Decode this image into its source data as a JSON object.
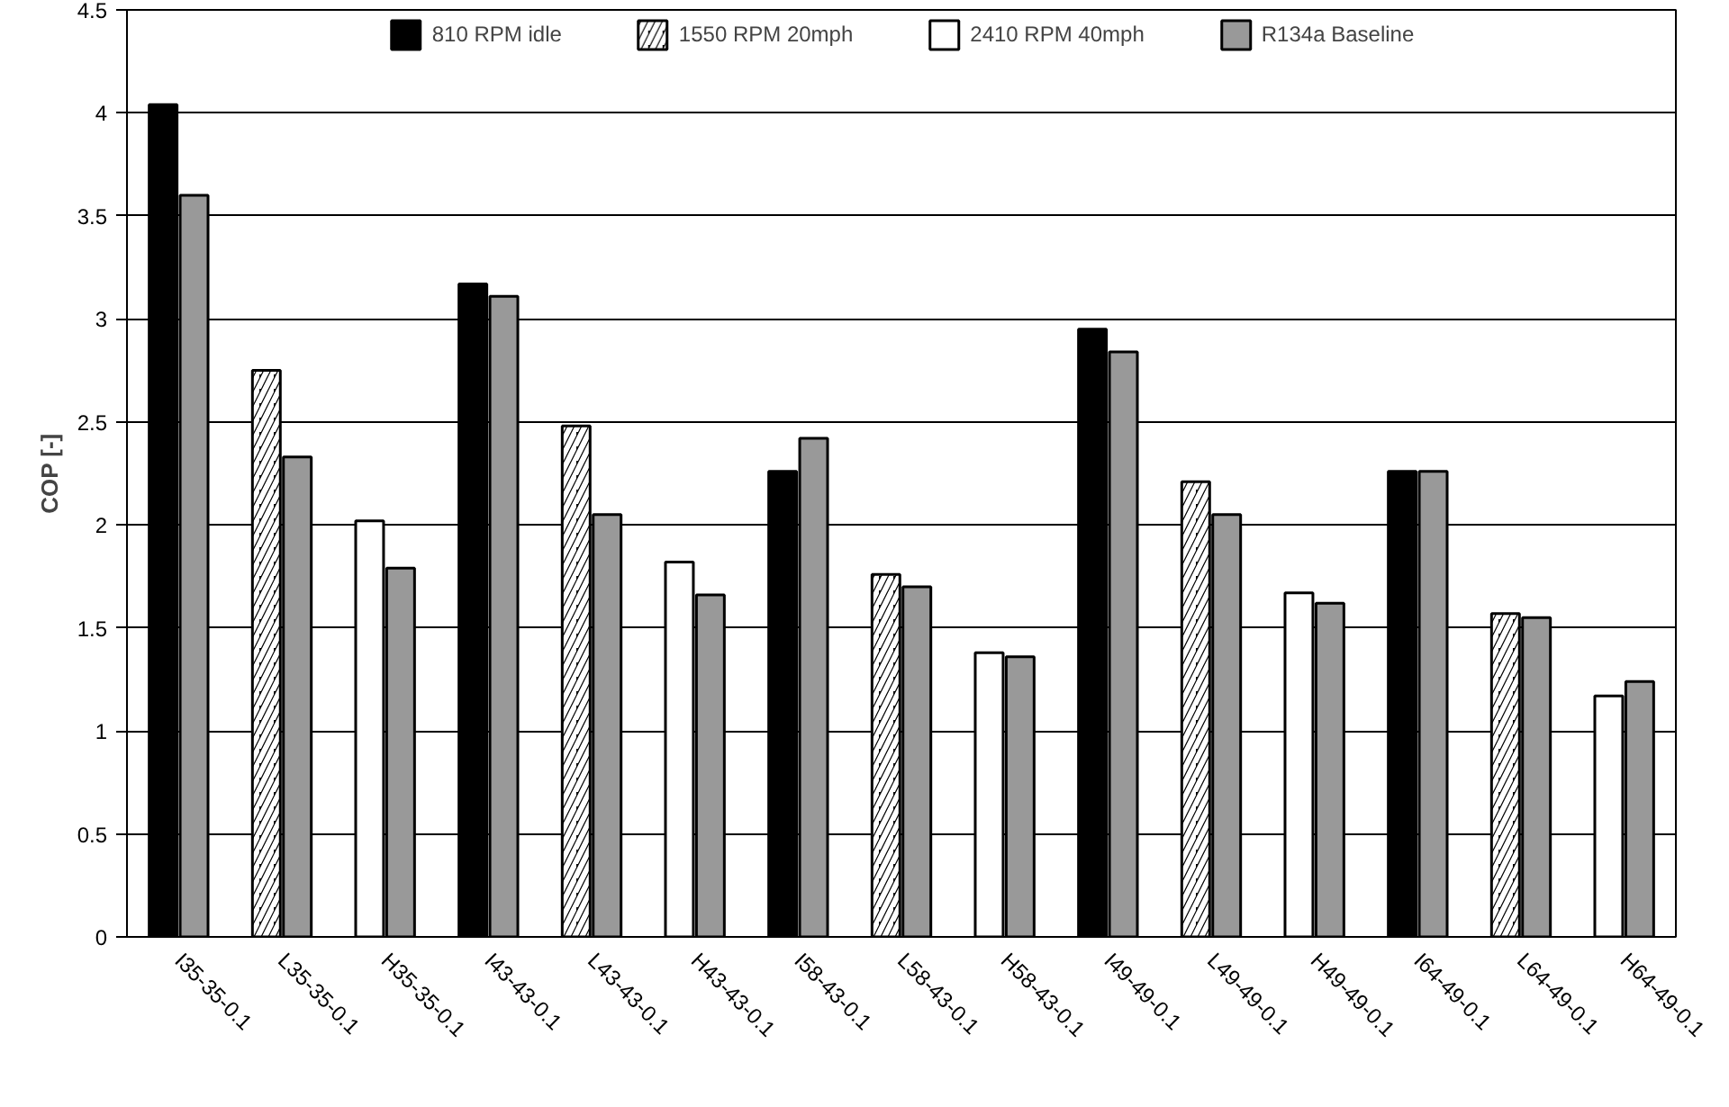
{
  "chart_data": {
    "type": "bar",
    "ylabel": "COP [-]",
    "categories": [
      "I35-35-0.1",
      "L35-35-0.1",
      "H35-35-0.1",
      "I43-43-0.1",
      "L43-43-0.1",
      "H43-43-0.1",
      "I58-43-0.1",
      "L58-43-0.1",
      "H58-43-0.1",
      "I49-49-0.1",
      "L49-49-0.1",
      "H49-49-0.1",
      "I64-49-0.1",
      "L64-49-0.1",
      "H64-49-0.1"
    ],
    "series": [
      {
        "name": "810 RPM idle",
        "color": "#000000",
        "values": [
          4.04,
          null,
          null,
          3.17,
          null,
          null,
          2.26,
          null,
          null,
          2.95,
          null,
          null,
          2.26,
          null,
          null
        ]
      },
      {
        "name": "1550 RPM 20mph",
        "color": "#000000",
        "values": [
          null,
          2.75,
          null,
          null,
          2.48,
          null,
          null,
          1.76,
          null,
          null,
          2.21,
          null,
          null,
          1.57,
          null
        ]
      },
      {
        "name": "2410 RPM 40mph",
        "color": "#ffffff",
        "values": [
          null,
          null,
          2.02,
          null,
          null,
          1.82,
          null,
          null,
          1.38,
          null,
          null,
          1.67,
          null,
          null,
          1.17
        ]
      },
      {
        "name": "R134a Baseline",
        "color": "#999999",
        "values": [
          3.6,
          2.33,
          1.79,
          3.11,
          2.05,
          1.66,
          2.42,
          1.7,
          1.36,
          2.84,
          2.05,
          1.62,
          2.26,
          1.55,
          1.24
        ]
      }
    ],
    "ylim": [
      0,
      4.5
    ],
    "yticks": [
      0,
      0.5,
      1,
      1.5,
      2,
      2.5,
      3,
      3.5,
      4,
      4.5
    ],
    "grid": "y",
    "legend": "top"
  }
}
